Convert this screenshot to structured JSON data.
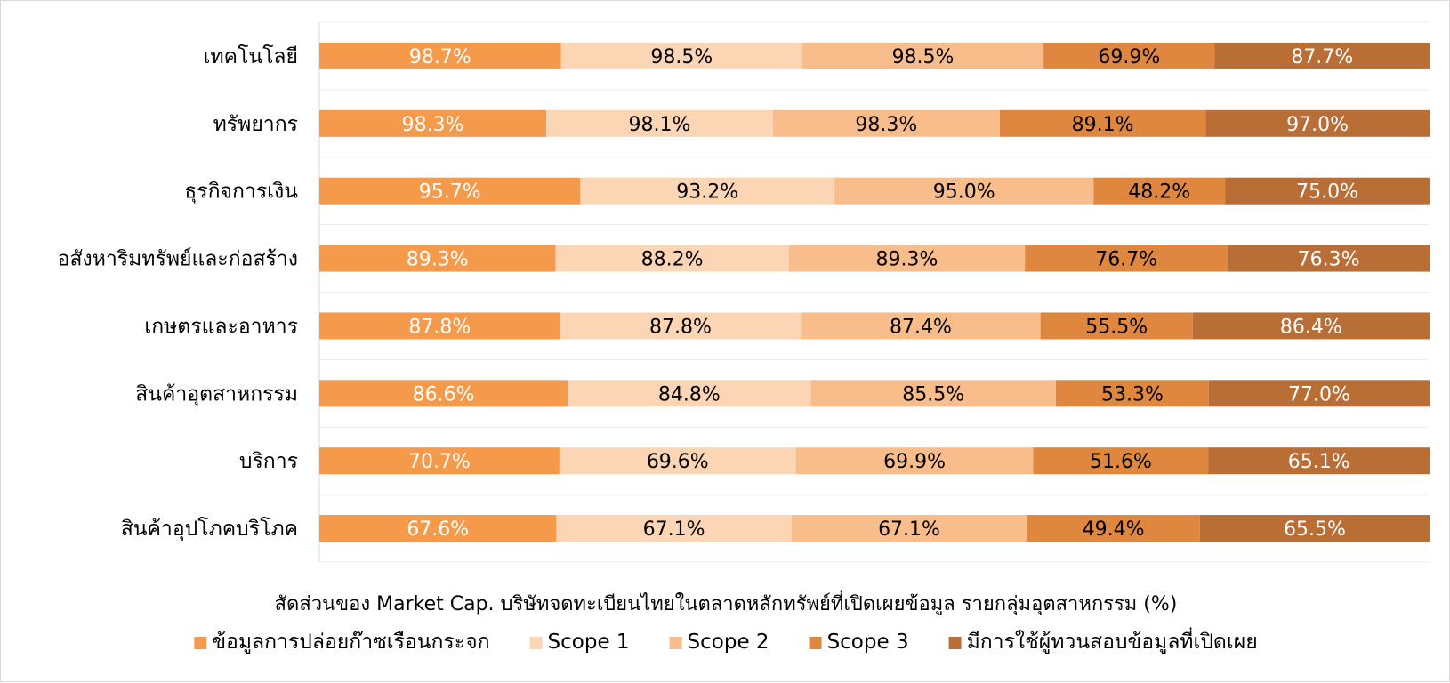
{
  "chart_data": {
    "type": "bar",
    "orientation": "horizontal",
    "stacked": true,
    "categories": [
      "เทคโนโลยี",
      "ทรัพยากร",
      "ธุรกิจการเงิน",
      "อสังหาริมทรัพย์และก่อสร้าง",
      "เกษตรและอาหาร",
      "สินค้าอุตสาหกรรม",
      "บริการ",
      "สินค้าอุปโภคบริโภค"
    ],
    "series": [
      {
        "name": "ข้อมูลการปล่อยก๊าซเรือนกระจก",
        "color": "#f59a4a",
        "label_color": "#ffffff",
        "values": [
          98.7,
          98.3,
          95.7,
          89.3,
          87.8,
          86.6,
          70.7,
          67.6
        ]
      },
      {
        "name": "Scope 1",
        "color": "#fcd5b5",
        "label_color": "#000000",
        "values": [
          98.5,
          98.1,
          93.2,
          88.2,
          87.8,
          84.8,
          69.6,
          67.1
        ]
      },
      {
        "name": "Scope 2",
        "color": "#f9bd8c",
        "label_color": "#000000",
        "values": [
          98.5,
          98.3,
          95.0,
          89.3,
          87.4,
          85.5,
          69.9,
          67.1
        ]
      },
      {
        "name": "Scope 3",
        "color": "#df863f",
        "label_color": "#000000",
        "values": [
          69.9,
          89.1,
          48.2,
          76.7,
          55.5,
          53.3,
          51.6,
          49.4
        ]
      },
      {
        "name": "มีการใช้ผู้ทวนสอบข้อมูลที่เปิดเผย",
        "color": "#b86e35",
        "label_color": "#ffffff",
        "values": [
          87.7,
          97.0,
          75.0,
          76.3,
          86.4,
          77.0,
          65.1,
          65.5
        ]
      }
    ],
    "value_format": "%",
    "xlabel": "สัดส่วนของ Market Cap. บริษัทจดทะเบียนไทยในตลาดหลักทรัพย์ที่เปิดเผยข้อมูล รายกลุ่มอุตสาหกรรม (%)",
    "ylabel": "",
    "grid": true,
    "legend_position": "bottom"
  }
}
